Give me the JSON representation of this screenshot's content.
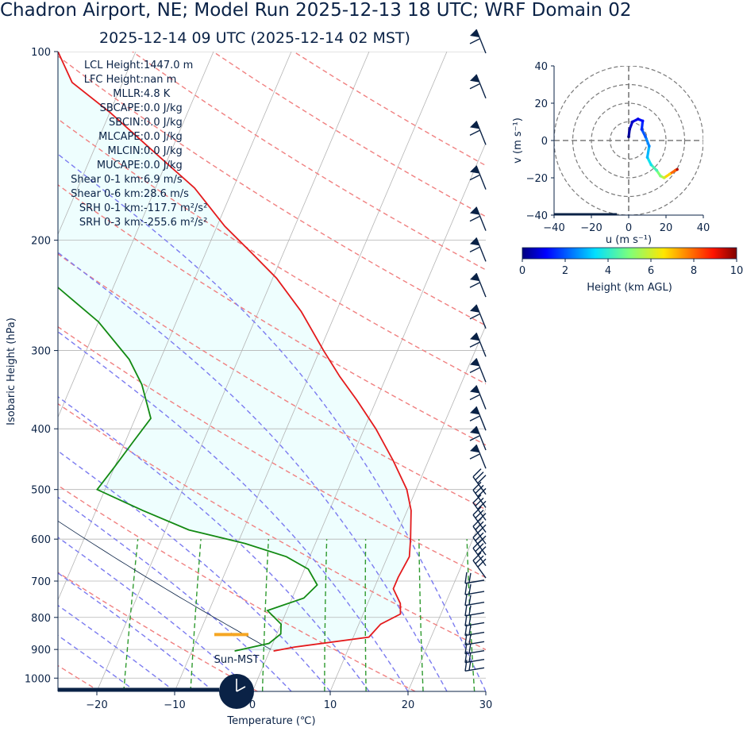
{
  "title": "Chadron Airport, NE; Model Run 2025-12-13 18 UTC; WRF Domain 02",
  "subtitle": "2025-12-14 09 UTC  (2025-12-14 02 MST)",
  "colors": {
    "text": "#0a2246",
    "temperature": "#e41a1c",
    "dewpoint": "#138a13",
    "dry_adiabat": "#f08080",
    "moist_adiabat": "#7b7bf0",
    "mixing_ratio": "#2e9a2e",
    "isotherm": "#b4b4b4",
    "cape_fill": "#eefefe",
    "lcl_marker": "#f5a623",
    "barb": "#0a2246"
  },
  "chart_data": [
    {
      "type": "line",
      "name": "skew-t",
      "xlabel": "Temperature (℃)",
      "ylabel": "Isobaric Height (hPa)",
      "xlim": [
        -25,
        30
      ],
      "ylim": [
        1050,
        100
      ],
      "y_scale": "log",
      "x_ticks": [
        "−20",
        "−10",
        "0",
        "10",
        "20",
        "30"
      ],
      "x_tick_values": [
        -20,
        -10,
        0,
        10,
        20,
        30
      ],
      "y_ticks": [
        "100",
        "200",
        "300",
        "400",
        "500",
        "600",
        "700",
        "800",
        "900",
        "1000"
      ],
      "y_tick_values": [
        100,
        200,
        300,
        400,
        500,
        600,
        700,
        800,
        900,
        1000
      ],
      "grid": true,
      "stats": [
        "LCL Height: 1447.0 m",
        "LFC Height: nan m",
        "MLLR: 4.8 K",
        "SBCAPE: 0.0 J/kg",
        "SBCIN: 0.0 J/kg",
        "MLCAPE: 0.0 J/kg",
        "MLCIN: 0.0 J/kg",
        "MUCAPE: 0.0 J/kg",
        "Shear 0-1 km: 6.9 m/s",
        "Shear 0-6 km: 28.6 m/s",
        "SRH 0-1 km: -117.7 m²/s²",
        "SRH 0-3 km: -255.6 m²/s²"
      ],
      "clock_label": "Sun-MST",
      "lcl_pressure": 852,
      "series": [
        {
          "name": "Temperature",
          "values": [
            {
              "p": 905,
              "t": 0.5
            },
            {
              "p": 892,
              "t": 3.0
            },
            {
              "p": 860,
              "t": 12.0
            },
            {
              "p": 820,
              "t": 12.8
            },
            {
              "p": 790,
              "t": 14.8
            },
            {
              "p": 760,
              "t": 14.2
            },
            {
              "p": 720,
              "t": 12.5
            },
            {
              "p": 690,
              "t": 12.5
            },
            {
              "p": 640,
              "t": 12.8
            },
            {
              "p": 600,
              "t": 12.0
            },
            {
              "p": 540,
              "t": 10.5
            },
            {
              "p": 500,
              "t": 8.8
            },
            {
              "p": 450,
              "t": 5.5
            },
            {
              "p": 400,
              "t": 1.5
            },
            {
              "p": 360,
              "t": -2.5
            },
            {
              "p": 330,
              "t": -6.0
            },
            {
              "p": 300,
              "t": -9.5
            },
            {
              "p": 260,
              "t": -14.5
            },
            {
              "p": 230,
              "t": -19.5
            },
            {
              "p": 210,
              "t": -24.0
            },
            {
              "p": 190,
              "t": -29.0
            },
            {
              "p": 165,
              "t": -35.0
            },
            {
              "p": 145,
              "t": -42.0
            },
            {
              "p": 125,
              "t": -50.0
            },
            {
              "p": 112,
              "t": -56.5
            },
            {
              "p": 100,
              "t": -60.0
            }
          ]
        },
        {
          "name": "Dewpoint",
          "values": [
            {
              "p": 905,
              "t": -4.5
            },
            {
              "p": 880,
              "t": -0.5
            },
            {
              "p": 850,
              "t": 0.5
            },
            {
              "p": 820,
              "t": 0.0
            },
            {
              "p": 780,
              "t": -2.5
            },
            {
              "p": 745,
              "t": 1.5
            },
            {
              "p": 710,
              "t": 2.5
            },
            {
              "p": 670,
              "t": 0.5
            },
            {
              "p": 640,
              "t": -3.0
            },
            {
              "p": 610,
              "t": -9.0
            },
            {
              "p": 580,
              "t": -17.0
            },
            {
              "p": 540,
              "t": -24.0
            },
            {
              "p": 500,
              "t": -31.0
            },
            {
              "p": 460,
              "t": -30.0
            },
            {
              "p": 420,
              "t": -29.0
            },
            {
              "p": 385,
              "t": -28.0
            },
            {
              "p": 340,
              "t": -31.0
            },
            {
              "p": 310,
              "t": -34.0
            },
            {
              "p": 270,
              "t": -40.0
            },
            {
              "p": 230,
              "t": -49.0
            },
            {
              "p": 200,
              "t": -56.0
            },
            {
              "p": 175,
              "t": -58.0
            },
            {
              "p": 150,
              "t": -61.0
            },
            {
              "p": 125,
              "t": -65.0
            },
            {
              "p": 100,
              "t": -72.0
            }
          ]
        }
      ]
    },
    {
      "type": "scatter",
      "name": "hodograph",
      "xlabel": "u (m s⁻¹)",
      "ylabel": "v (m s⁻¹)",
      "xlim": [
        -40,
        40
      ],
      "ylim": [
        -40,
        40
      ],
      "x_ticks": [
        "−40",
        "−20",
        "0",
        "20",
        "40"
      ],
      "y_ticks": [
        "40",
        "20",
        "0",
        "−20",
        "−40"
      ],
      "colorbar_label": "Height (km AGL)",
      "colorbar_ticks": [
        "0",
        "2",
        "4",
        "6",
        "8",
        "10"
      ],
      "points": [
        {
          "u": 0,
          "v": 2,
          "h": 0.0
        },
        {
          "u": 0.5,
          "v": 6,
          "h": 0.3
        },
        {
          "u": 2,
          "v": 10,
          "h": 0.6
        },
        {
          "u": 5,
          "v": 11.5,
          "h": 0.9
        },
        {
          "u": 7.5,
          "v": 10.5,
          "h": 1.2
        },
        {
          "u": 7,
          "v": 6,
          "h": 1.5
        },
        {
          "u": 9,
          "v": 2,
          "h": 2.0
        },
        {
          "u": 11,
          "v": -3,
          "h": 2.5
        },
        {
          "u": 10,
          "v": -9,
          "h": 3.0
        },
        {
          "u": 12,
          "v": -13,
          "h": 3.6
        },
        {
          "u": 15,
          "v": -16,
          "h": 4.3
        },
        {
          "u": 17,
          "v": -19,
          "h": 5.0
        },
        {
          "u": 19,
          "v": -20,
          "h": 5.8
        },
        {
          "u": 22,
          "v": -18,
          "h": 6.8
        },
        {
          "u": 25,
          "v": -16,
          "h": 8.0
        },
        {
          "u": 26,
          "v": -15.5,
          "h": 9.5
        }
      ]
    }
  ]
}
